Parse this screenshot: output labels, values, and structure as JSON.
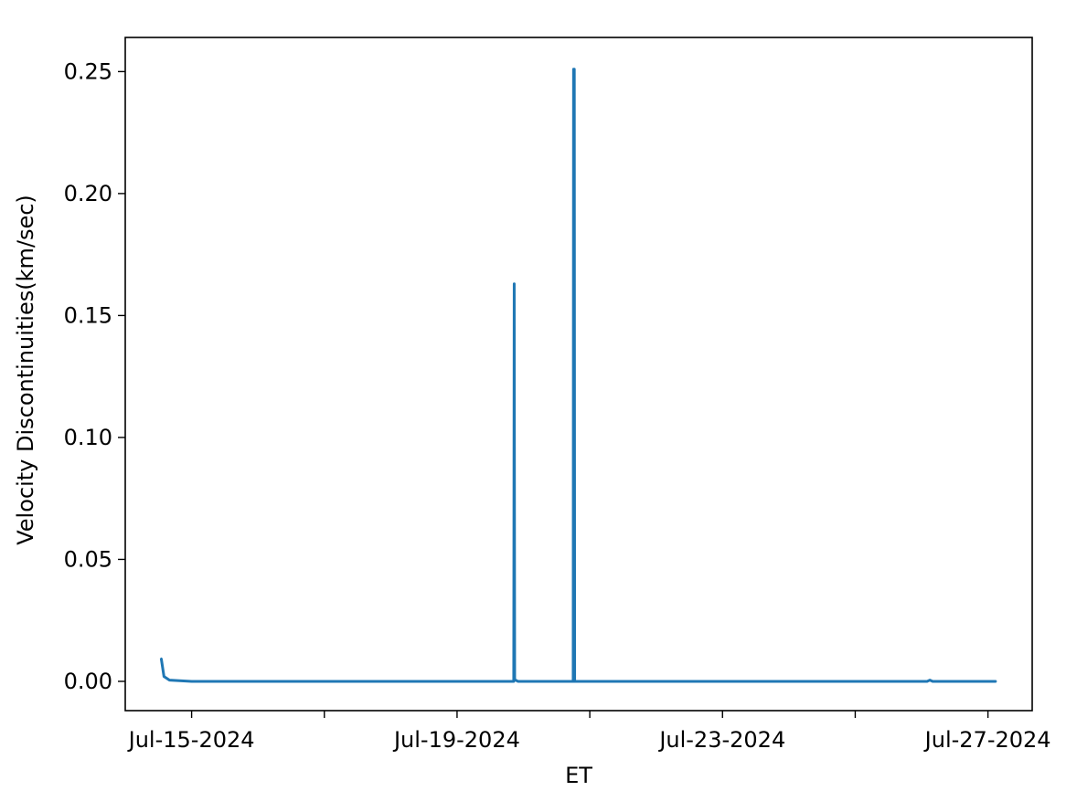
{
  "chart_data": {
    "type": "line",
    "title": "",
    "xlabel": "ET",
    "ylabel": "Velocity Discontinuities(km/sec)",
    "x_type": "date",
    "xlim": [
      "2024-07-14T00:00",
      "2024-07-27T16:00"
    ],
    "ylim": [
      -0.012,
      0.264
    ],
    "x_ticks": [
      {
        "value": "2024-07-15",
        "label": "Jul-15-2024"
      },
      {
        "value": "2024-07-17",
        "label": ""
      },
      {
        "value": "2024-07-19",
        "label": "Jul-19-2024"
      },
      {
        "value": "2024-07-21",
        "label": ""
      },
      {
        "value": "2024-07-23",
        "label": "Jul-23-2024"
      },
      {
        "value": "2024-07-25",
        "label": ""
      },
      {
        "value": "2024-07-27",
        "label": "Jul-27-2024"
      }
    ],
    "y_ticks": [
      {
        "value": 0.0,
        "label": "0.00"
      },
      {
        "value": 0.05,
        "label": "0.05"
      },
      {
        "value": 0.1,
        "label": "0.10"
      },
      {
        "value": 0.15,
        "label": "0.15"
      },
      {
        "value": 0.2,
        "label": "0.20"
      },
      {
        "value": 0.25,
        "label": "0.25"
      }
    ],
    "grid": false,
    "legend": "none",
    "series": [
      {
        "color": "#1f77b4",
        "points": [
          {
            "x": "2024-07-14T13:00",
            "y": 0.0095
          },
          {
            "x": "2024-07-14T14:00",
            "y": 0.002
          },
          {
            "x": "2024-07-14T16:00",
            "y": 0.0005
          },
          {
            "x": "2024-07-15T00:00",
            "y": 0.0
          },
          {
            "x": "2024-07-19T20:30",
            "y": 0.0
          },
          {
            "x": "2024-07-19T20:40",
            "y": 0.163
          },
          {
            "x": "2024-07-19T20:50",
            "y": 0.0007
          },
          {
            "x": "2024-07-19T22:00",
            "y": 0.0
          },
          {
            "x": "2024-07-20T18:00",
            "y": 0.0
          },
          {
            "x": "2024-07-20T18:08",
            "y": 0.251
          },
          {
            "x": "2024-07-20T18:16",
            "y": 0.0
          },
          {
            "x": "2024-07-20T18:24",
            "y": 0.251
          },
          {
            "x": "2024-07-20T18:32",
            "y": 0.0
          },
          {
            "x": "2024-07-26T02:00",
            "y": 0.0
          },
          {
            "x": "2024-07-26T03:00",
            "y": 0.0005
          },
          {
            "x": "2024-07-26T04:00",
            "y": 0.0
          },
          {
            "x": "2024-07-27T03:00",
            "y": 0.0
          }
        ]
      }
    ]
  }
}
